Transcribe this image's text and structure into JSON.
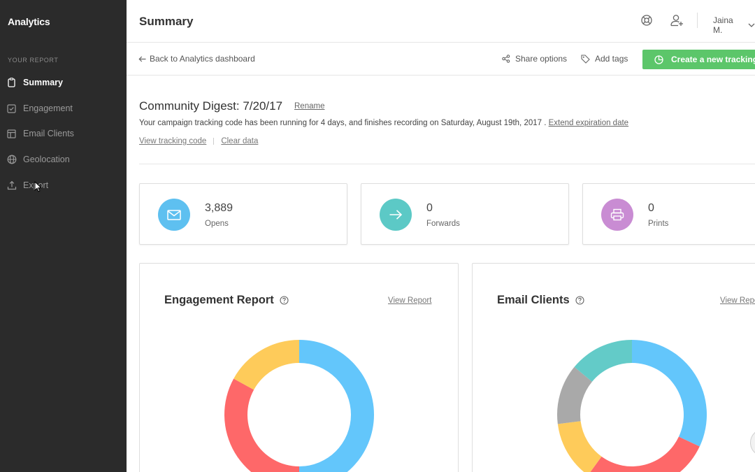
{
  "sidebar": {
    "app_title": "Analytics",
    "section_label": "YOUR REPORT",
    "items": [
      {
        "label": "Summary",
        "icon": "clipboard-icon",
        "active": true
      },
      {
        "label": "Engagement",
        "icon": "check-square-icon",
        "active": false
      },
      {
        "label": "Email Clients",
        "icon": "layout-icon",
        "active": false
      },
      {
        "label": "Geolocation",
        "icon": "globe-icon",
        "active": false
      },
      {
        "label": "Export",
        "icon": "upload-icon",
        "active": false
      }
    ]
  },
  "header": {
    "title": "Summary",
    "user_name": "Jaina M."
  },
  "toolbar": {
    "back_label": "Back to Analytics dashboard",
    "share_label": "Share options",
    "tags_label": "Add tags",
    "create_label": "Create a new tracking code"
  },
  "campaign": {
    "title": "Community Digest: 7/20/17",
    "rename_label": "Rename",
    "description": "Your campaign tracking code has been running for 4 days, and finishes recording on Saturday, August 19th, 2017 .",
    "extend_label": "Extend expiration date",
    "view_code_label": "View tracking code",
    "clear_data_label": "Clear data"
  },
  "stats": [
    {
      "value": "3,889",
      "label": "Opens",
      "icon": "mail-icon",
      "color": "#5ec0f0"
    },
    {
      "value": "0",
      "label": "Forwards",
      "icon": "arrow-right-icon",
      "color": "#5cc9c6"
    },
    {
      "value": "0",
      "label": "Prints",
      "icon": "printer-icon",
      "color": "#c98cd3"
    }
  ],
  "reports": {
    "engagement": {
      "title": "Engagement Report",
      "link": "View Report",
      "segments": [
        {
          "fraction": 0.5,
          "color": "#63c6fb"
        },
        {
          "fraction": 0.33,
          "color": "#fe6869"
        },
        {
          "fraction": 0.17,
          "color": "#fecb5a"
        }
      ]
    },
    "email_clients": {
      "title": "Email Clients",
      "link": "View Report",
      "segments": [
        {
          "fraction": 0.32,
          "color": "#63c6fb"
        },
        {
          "fraction": 0.28,
          "color": "#fe6869"
        },
        {
          "fraction": 0.13,
          "color": "#fecb5a"
        },
        {
          "fraction": 0.13,
          "color": "#a9a9a9"
        },
        {
          "fraction": 0.14,
          "color": "#63cbc8"
        }
      ]
    }
  },
  "colors": {
    "sidebar_bg": "#2b2b2b",
    "accent_green": "#5cc66a"
  }
}
